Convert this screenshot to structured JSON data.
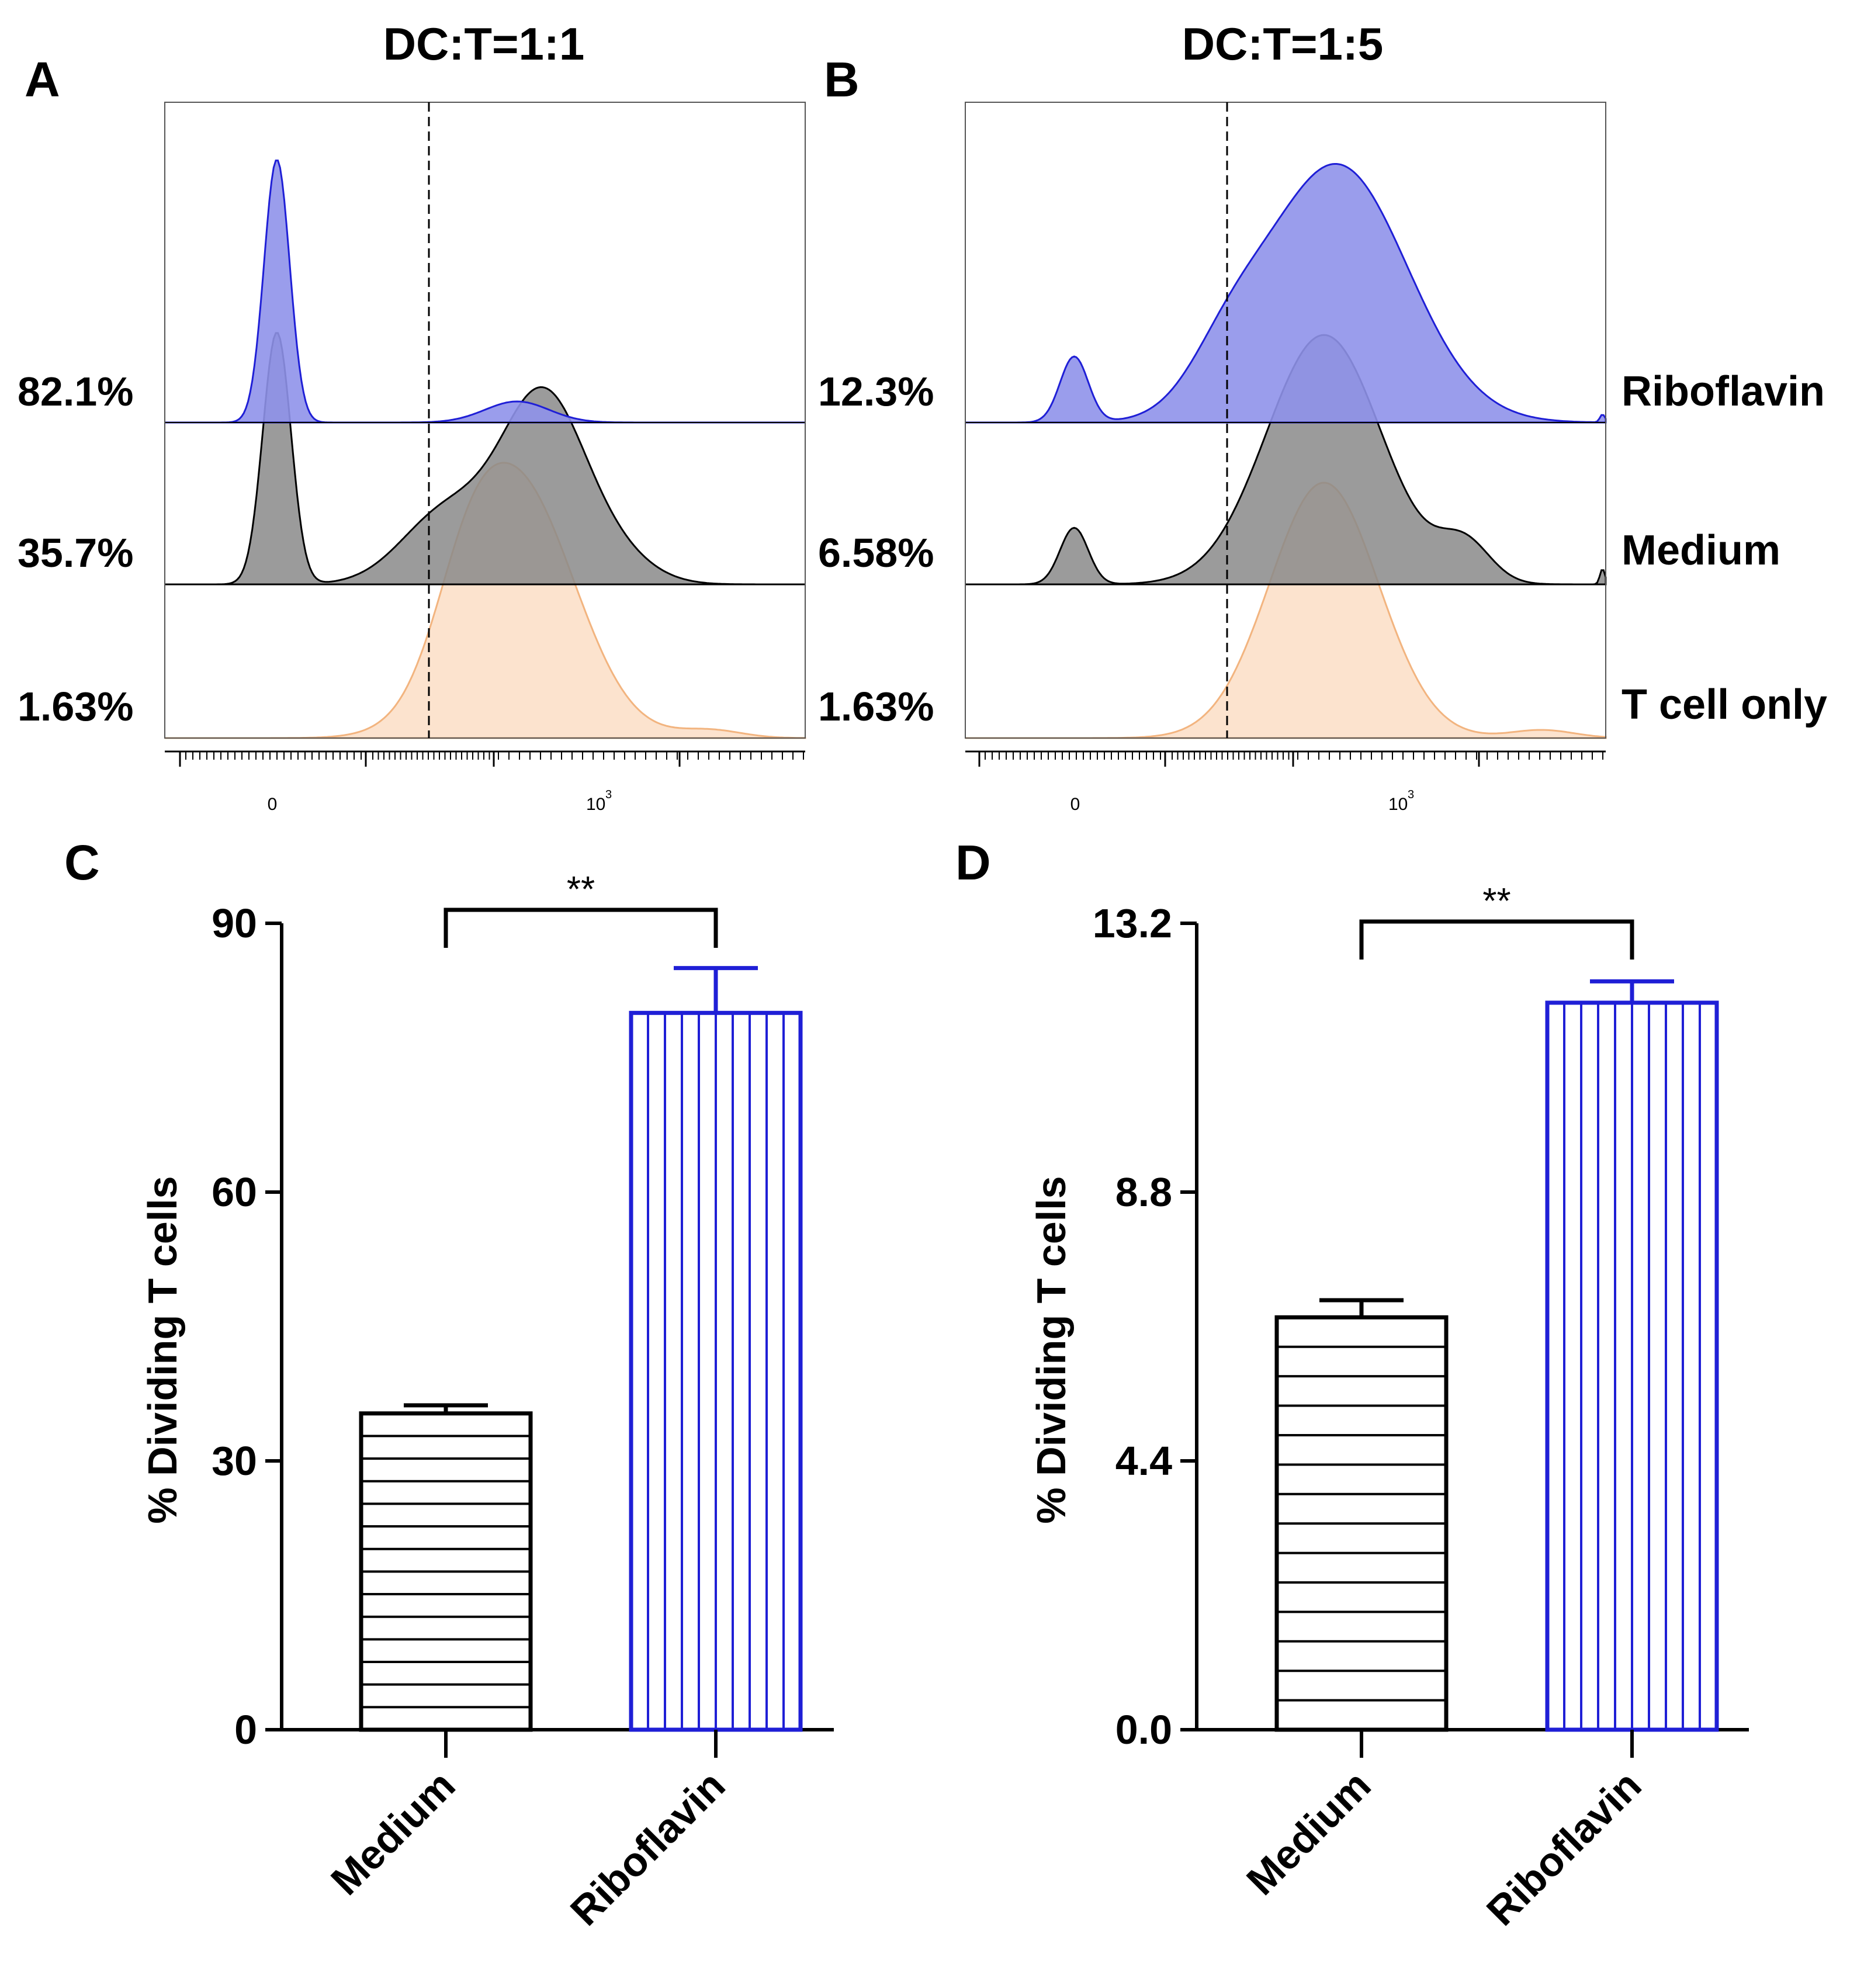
{
  "colors": {
    "riboflavin": "#1f1fd6",
    "riboflavin_fill": "#8f92ea",
    "medium": "#000000",
    "medium_fill": "#8a8a8a",
    "tcell_line": "#f2b47f",
    "tcell_fill": "#fbdcc2"
  },
  "chart_data": [
    {
      "panel": "A",
      "type": "histogram",
      "title": "DC:T=1:1",
      "x_tick_labels": [
        {
          "base": "0",
          "exp": ""
        },
        {
          "base": "10",
          "exp": "3"
        }
      ],
      "rows": [
        {
          "label": "Riboflavin",
          "percent": "82.1%"
        },
        {
          "label": "Medium",
          "percent": "35.7%"
        },
        {
          "label": "T cell only",
          "percent": "1.63%"
        }
      ]
    },
    {
      "panel": "B",
      "type": "histogram",
      "title": "DC:T=1:5",
      "x_tick_labels": [
        {
          "base": "0",
          "exp": ""
        },
        {
          "base": "10",
          "exp": "3"
        }
      ],
      "rows": [
        {
          "label": "Riboflavin",
          "percent": "12.3%"
        },
        {
          "label": "Medium",
          "percent": "6.58%"
        },
        {
          "label": "T cell only",
          "percent": "1.63%"
        }
      ]
    },
    {
      "panel": "C",
      "type": "bar",
      "title": "",
      "ylabel": "% Dividing T cells",
      "xlabel": "",
      "ylim": [
        0,
        90
      ],
      "yticks": [
        0,
        30,
        60,
        90
      ],
      "ytick_labels": [
        "0",
        "30",
        "60",
        "90"
      ],
      "categories": [
        "Medium",
        "Riboflavin"
      ],
      "values": [
        35.3,
        80.0
      ],
      "errors": [
        0.9,
        5.0
      ],
      "significance": "**"
    },
    {
      "panel": "D",
      "type": "bar",
      "title": "",
      "ylabel": "% Dividing T cells",
      "xlabel": "",
      "ylim": [
        0,
        13.2
      ],
      "yticks": [
        0,
        4.4,
        8.8,
        13.2
      ],
      "ytick_labels": [
        "0.0",
        "4.4",
        "8.8",
        "13.2"
      ],
      "categories": [
        "Medium",
        "Riboflavin"
      ],
      "values": [
        6.75,
        11.9
      ],
      "errors": [
        0.28,
        0.35
      ],
      "significance": "**"
    }
  ]
}
